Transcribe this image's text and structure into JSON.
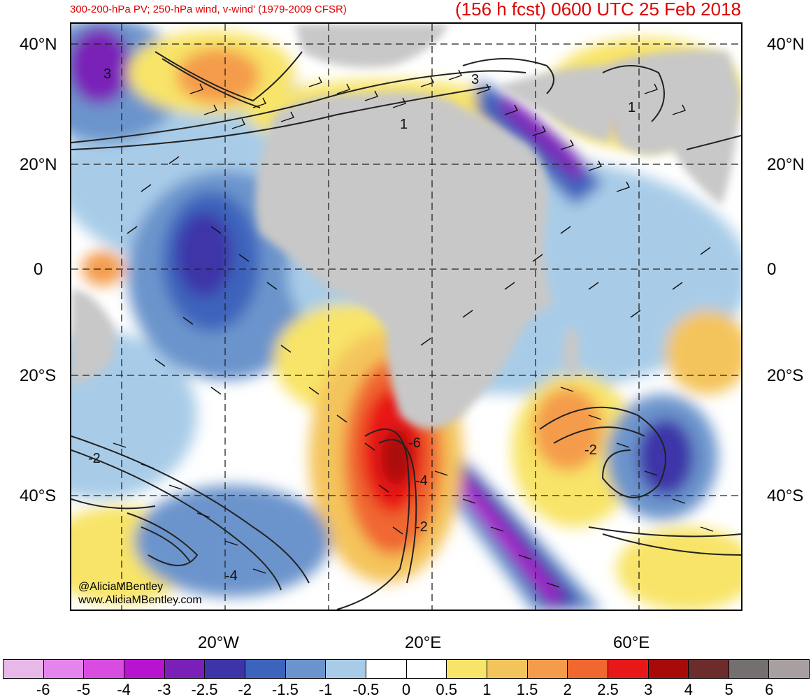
{
  "header": {
    "subtitle": "300-200-hPa PV; 250-hPa wind, v-wind' (1979-2009 CFSR)",
    "title": "(156 h fcst) 0600 UTC 25 Feb 2018"
  },
  "map": {
    "region": "Africa, South Atlantic and Indian Ocean",
    "lat_labels_left": [
      "40°N",
      "20°N",
      "0",
      "20°S",
      "40°S"
    ],
    "lat_labels_right": [
      "40°N",
      "20°N",
      "0",
      "20°S",
      "40°S"
    ],
    "lon_labels": [
      "20°W",
      "20°E",
      "60°E"
    ],
    "gridlines": "dashed",
    "land_color": "#c8c8c8",
    "contour_labels": [
      "3",
      "3",
      "1",
      "1",
      "-2",
      "-2",
      "-2",
      "-4",
      "-6",
      "-4"
    ]
  },
  "credits": {
    "handle": "@AliciaMBentley",
    "website": "www.AliciaMBentley.com"
  },
  "colorbar": {
    "labels": [
      "-6",
      "-5",
      "-4",
      "-3",
      "-2.5",
      "-2",
      "-1.5",
      "-1",
      "-0.5",
      "0",
      "0.5",
      "1",
      "1.5",
      "2",
      "2.5",
      "3",
      "4",
      "5",
      "6"
    ],
    "colors": [
      "#e8b8e8",
      "#e484ec",
      "#d84ce0",
      "#b814d0",
      "#7a20b8",
      "#3c34a8",
      "#3c64bc",
      "#6c94cc",
      "#a8cce8",
      "#ffffff",
      "#ffffff",
      "#f8e468",
      "#f4c45c",
      "#f49c4c",
      "#f06830",
      "#e81818",
      "#a80a0a",
      "#6c2c2c",
      "#747070",
      "#a8a0a0"
    ]
  }
}
